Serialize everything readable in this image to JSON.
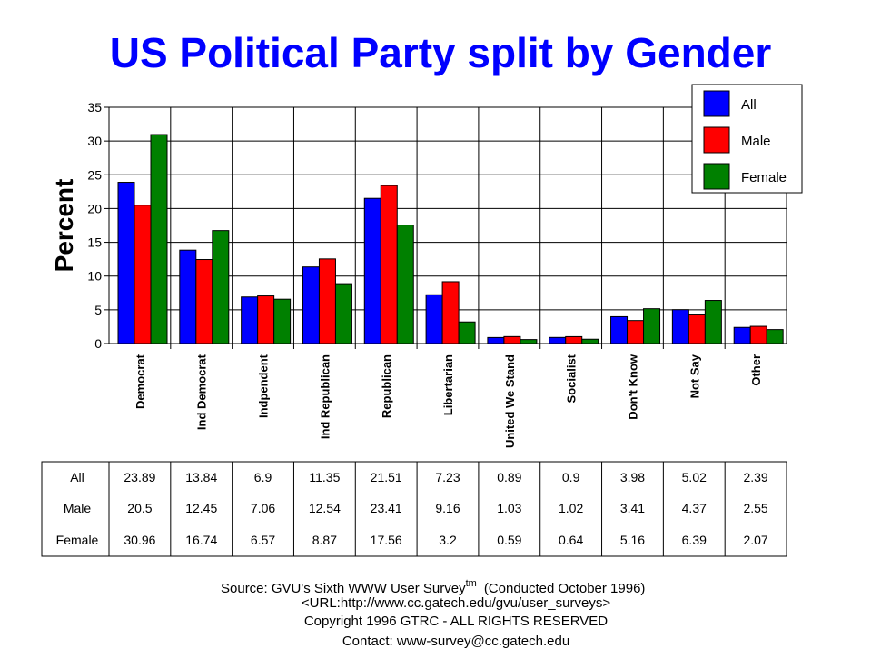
{
  "chart_data": {
    "type": "bar",
    "title": "US Political Party split by Gender",
    "xlabel": "",
    "ylabel": "Percent",
    "ylim": [
      0,
      35
    ],
    "yticks": [
      0,
      5,
      10,
      15,
      20,
      25,
      30,
      35
    ],
    "grid": true,
    "legend_placement": "top-right",
    "categories": [
      "Democrat",
      "Ind Democrat",
      "Indpendent",
      "Ind Republican",
      "Republican",
      "Libertarian",
      "United We Stand",
      "Socialist",
      "Don't Know",
      "Not Say",
      "Other"
    ],
    "series": [
      {
        "name": "All",
        "color": "#0000ff",
        "values": [
          23.89,
          13.84,
          6.9,
          11.35,
          21.51,
          7.23,
          0.89,
          0.9,
          3.98,
          5.02,
          2.39
        ]
      },
      {
        "name": "Male",
        "color": "#ff0000",
        "values": [
          20.5,
          12.45,
          7.06,
          12.54,
          23.41,
          9.16,
          1.03,
          1.02,
          3.41,
          4.37,
          2.55
        ]
      },
      {
        "name": "Female",
        "color": "#008000",
        "values": [
          30.96,
          16.74,
          6.57,
          8.87,
          17.56,
          3.2,
          0.59,
          0.64,
          5.16,
          6.39,
          2.07
        ]
      }
    ]
  },
  "footer": {
    "source": "Source: GVU's Sixth WWW User Survey",
    "tm": "tm",
    "conducted": "(Conducted October 1996)",
    "url": "<URL:http://www.cc.gatech.edu/gvu/user_surveys>",
    "copyright": "Copyright 1996 GTRC -  ALL RIGHTS RESERVED",
    "contact": "Contact: www-survey@cc.gatech.edu"
  }
}
